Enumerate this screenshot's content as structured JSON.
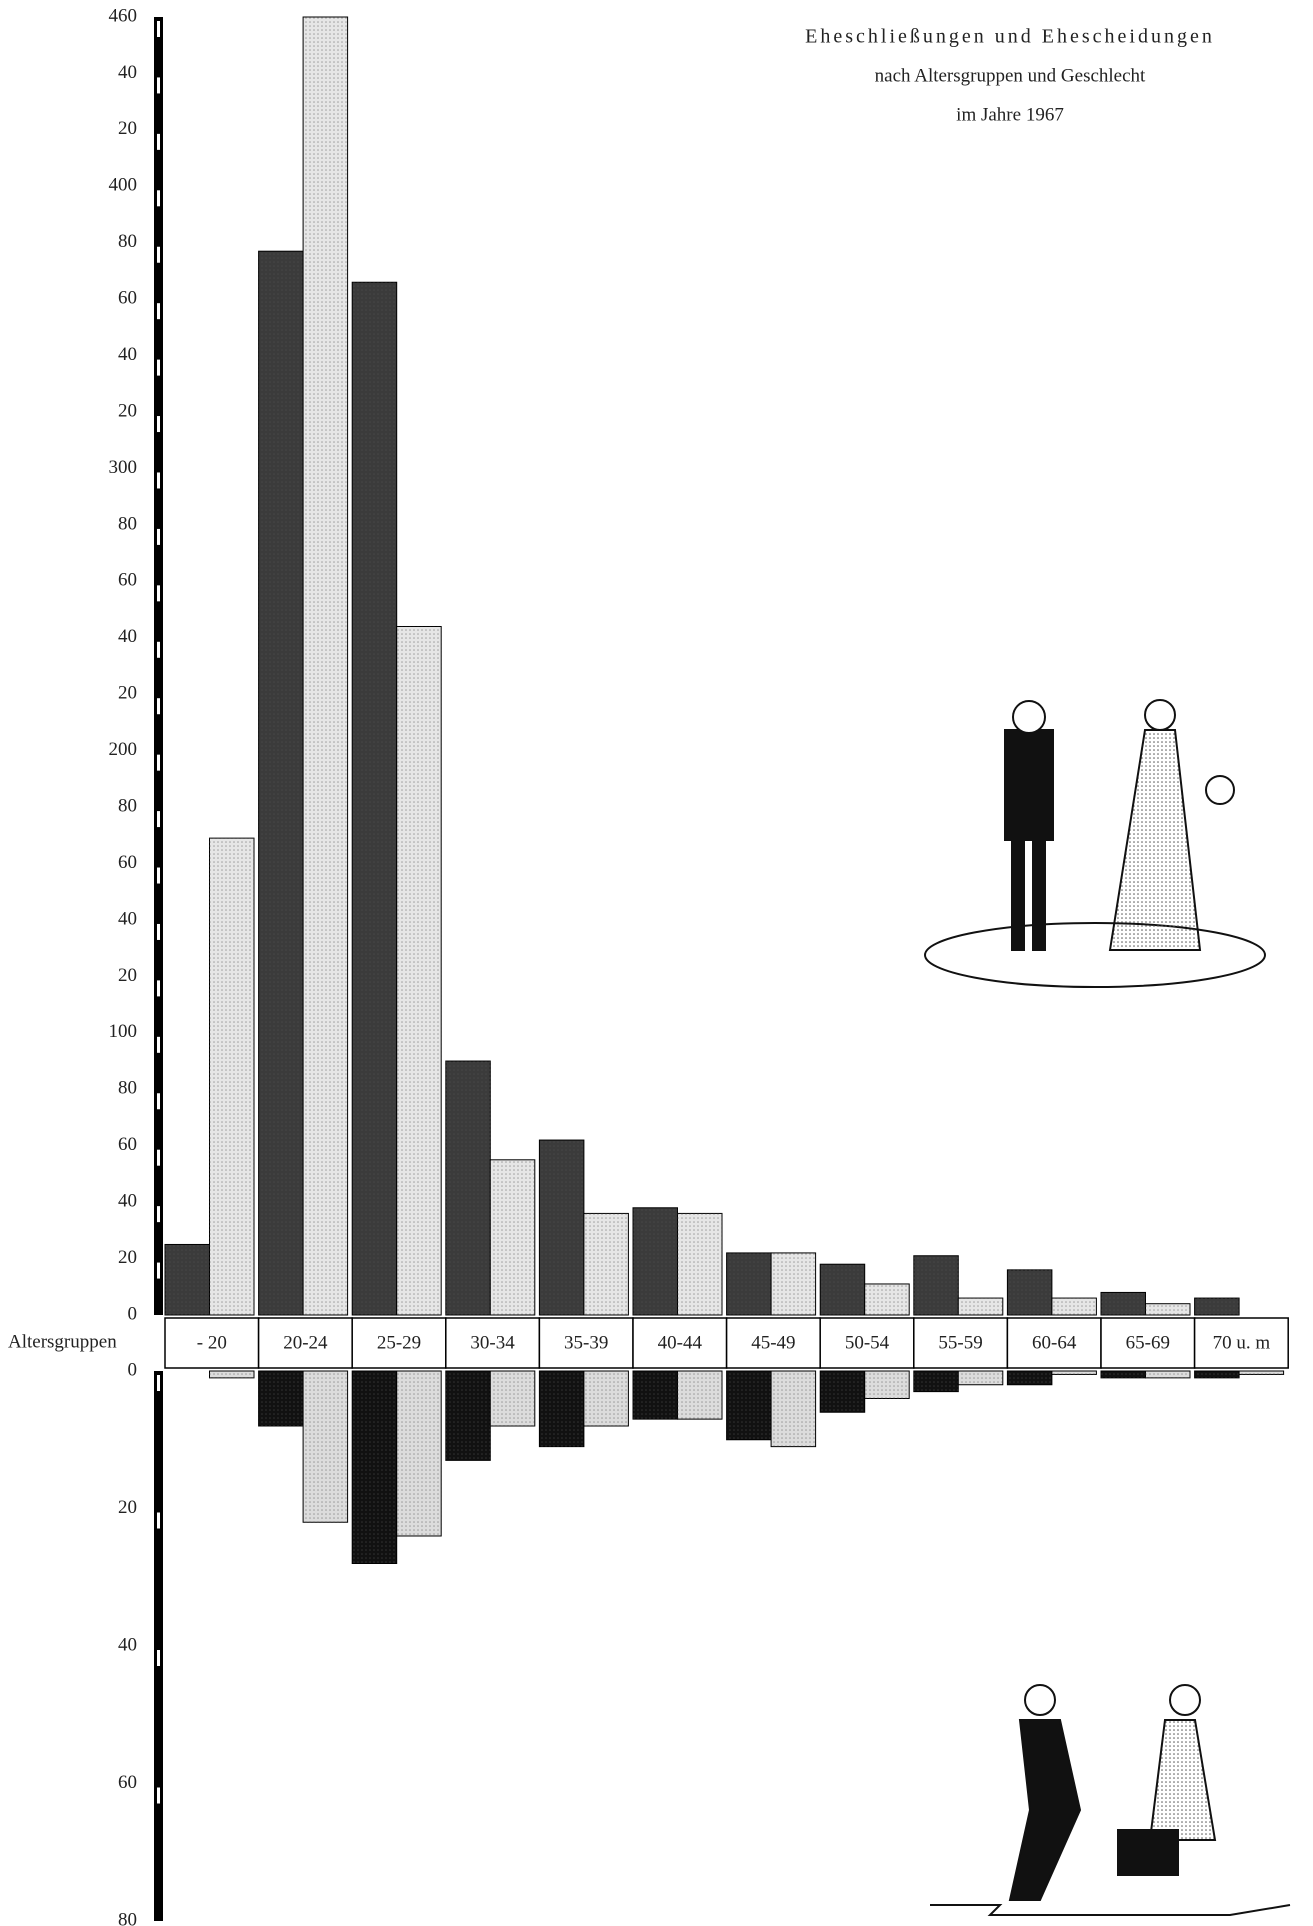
{
  "chart_data": [
    {
      "type": "bar",
      "title": "Eheschließungen und Ehescheidungen",
      "subtitle": [
        "nach Altersgruppen und Geschlecht",
        "im Jahre 1967"
      ],
      "x_label": "Altersgruppen",
      "categories": [
        "- 20",
        "20-24",
        "25-29",
        "30-34",
        "35-39",
        "40-44",
        "45-49",
        "50-54",
        "55-59",
        "60-64",
        "65-69",
        "70 u. m"
      ],
      "series": [
        {
          "color": "#3b3b3b",
          "values": [
            25,
            377,
            366,
            90,
            62,
            38,
            22,
            18,
            21,
            16,
            8,
            6
          ]
        },
        {
          "color": "#e6e6e6",
          "values": [
            169,
            460,
            244,
            55,
            36,
            36,
            22,
            11,
            6,
            6,
            4,
            0
          ]
        }
      ],
      "ylim": [
        0,
        460
      ],
      "yticks": [
        0,
        20,
        40,
        60,
        80,
        100,
        {
          "value": 120,
          "label": "20"
        },
        {
          "value": 140,
          "label": "40"
        },
        {
          "value": 160,
          "label": "60"
        },
        {
          "value": 180,
          "label": "80"
        },
        200,
        {
          "value": 220,
          "label": "20"
        },
        {
          "value": 240,
          "label": "40"
        },
        {
          "value": 260,
          "label": "60"
        },
        {
          "value": 280,
          "label": "80"
        },
        300,
        {
          "value": 320,
          "label": "20"
        },
        {
          "value": 340,
          "label": "40"
        },
        {
          "value": 360,
          "label": "60"
        },
        {
          "value": 380,
          "label": "80"
        },
        400,
        {
          "value": 420,
          "label": "20"
        },
        {
          "value": 440,
          "label": "40"
        },
        460
      ]
    },
    {
      "type": "bar",
      "inverted": true,
      "series": [
        {
          "color": "#111111",
          "values": [
            0,
            8,
            28,
            13,
            11,
            7,
            10,
            6,
            3,
            2,
            1,
            1
          ]
        },
        {
          "color": "#dcdcdc",
          "values": [
            1,
            22,
            24,
            8,
            8,
            7,
            11,
            4,
            2,
            0.5,
            1,
            0.5
          ]
        }
      ],
      "ylim": [
        0,
        80
      ],
      "yticks": [
        0,
        20,
        40,
        60,
        80
      ]
    }
  ]
}
